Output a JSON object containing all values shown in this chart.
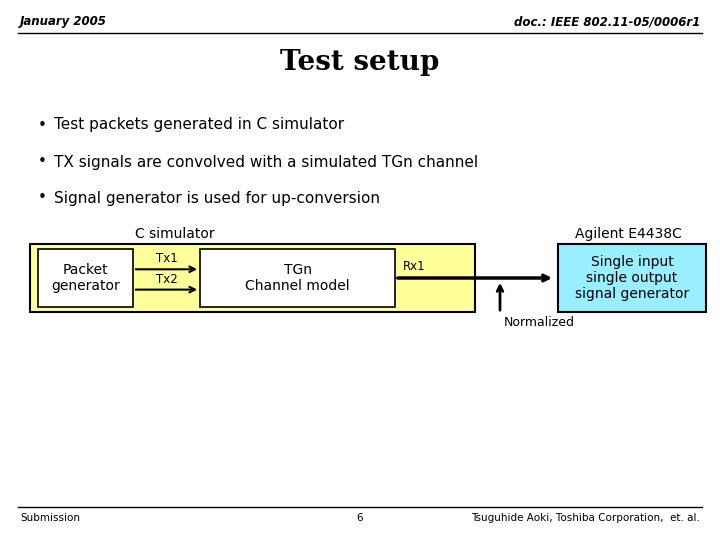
{
  "title": "Test setup",
  "header_left": "January 2005",
  "header_right": "doc.: IEEE 802.11-05/0006r1",
  "bullets": [
    "Test packets generated in C simulator",
    "TX signals are convolved with a simulated TGn channel",
    "Signal generator is used for up-conversion"
  ],
  "label_c_sim": "C simulator",
  "label_agilent": "Agilent E4438C",
  "label_packet": "Packet\ngenerator",
  "label_tgn": "TGn\nChannel model",
  "label_tx1": "Tx1",
  "label_tx2": "Tx2",
  "label_rx1": "Rx1",
  "label_normalized": "Normalized",
  "label_single": "Single input\nsingle output\nsignal generator",
  "footer_left": "Submission",
  "footer_center": "6",
  "footer_right": "Tsuguhide Aoki, Toshiba Corporation,  et. al.",
  "bg_color": "#ffffff",
  "yellow_box_color": "#ffff99",
  "cyan_box_color": "#99eeff",
  "white_box_color": "#ffffff",
  "box_edge_color": "#000000"
}
